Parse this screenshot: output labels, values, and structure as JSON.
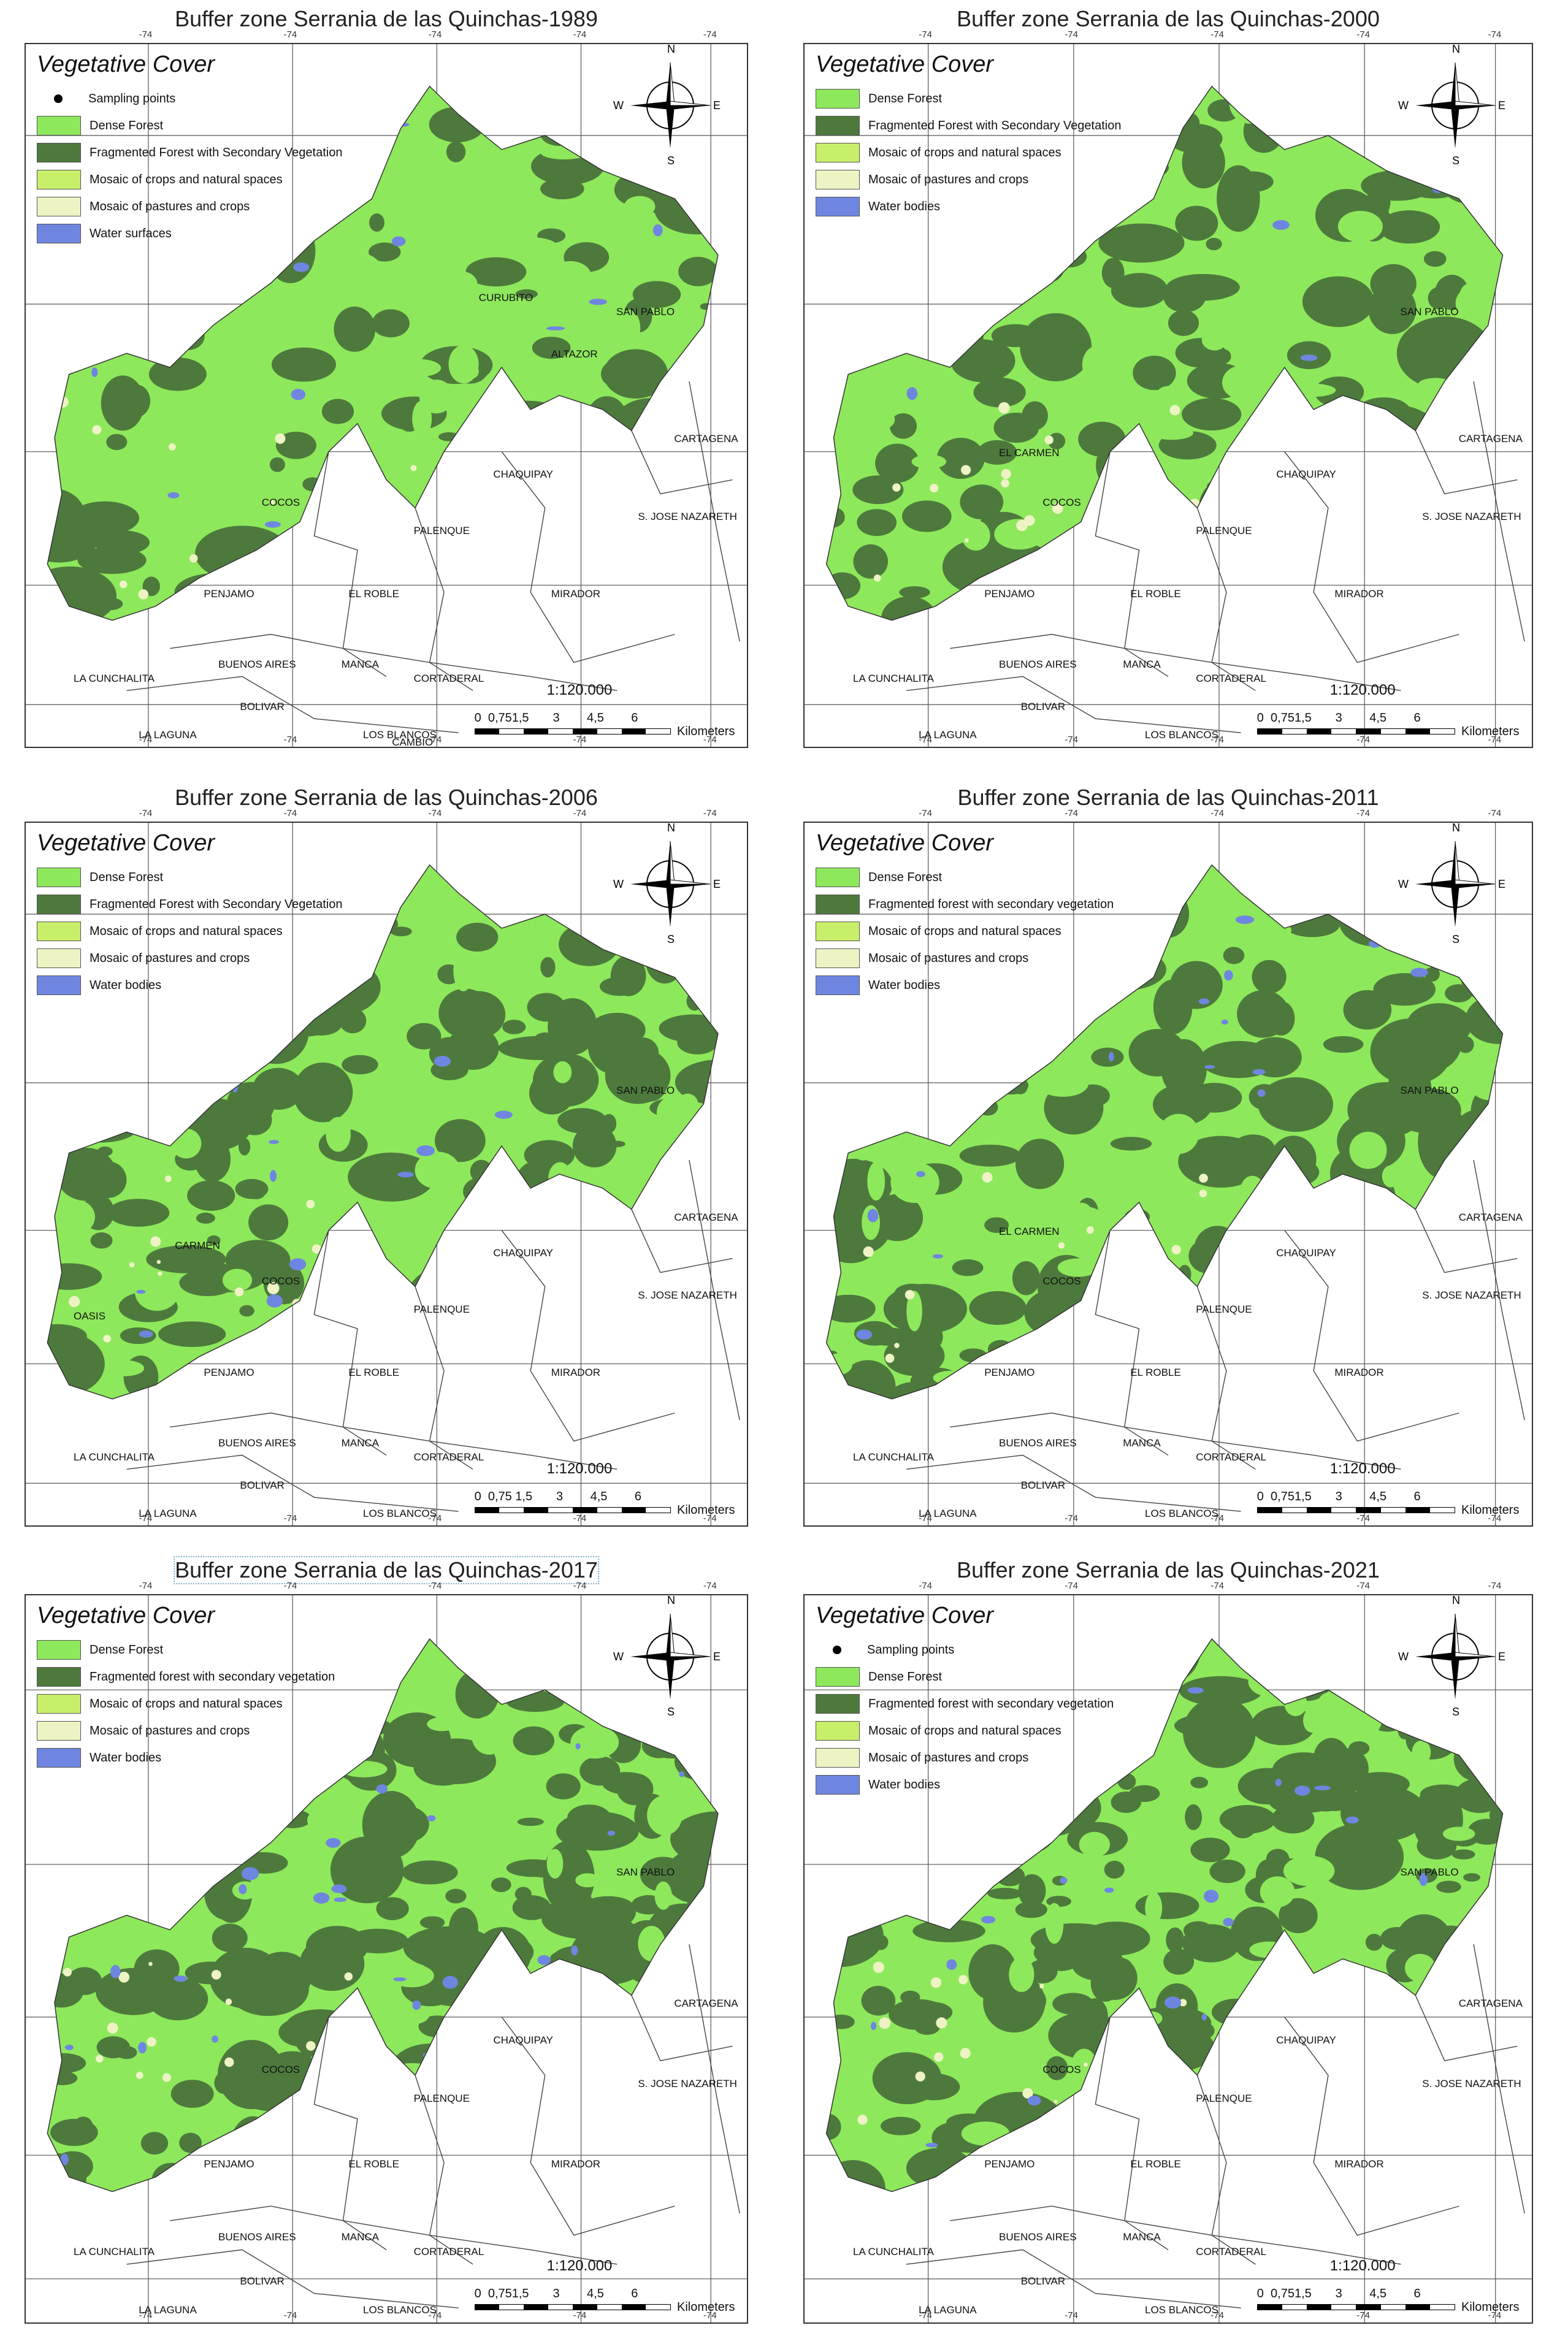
{
  "maps": [
    {
      "title": "Buffer zone Serrania de las Quinchas-1989",
      "legend_title": "Vegetative Cover",
      "legend": [
        {
          "label": "Sampling points",
          "kind": "point",
          "color": "#000000"
        },
        {
          "label": "Dense Forest",
          "kind": "fill",
          "color": "#8ee85c"
        },
        {
          "label": "Fragmented Forest with Secondary Vegetation",
          "kind": "fill",
          "color": "#4d7a3c"
        },
        {
          "label": "Mosaic of crops and natural spaces",
          "kind": "fill",
          "color": "#c8ef6a"
        },
        {
          "label": "Mosaic of pastures and crops",
          "kind": "fill",
          "color": "#eef3c4"
        },
        {
          "label": "Water surfaces",
          "kind": "fill",
          "color": "#6f86e0"
        }
      ],
      "scale_ratio": "1:120.000",
      "scale_ticks": "0  0,751,5       3        4,5        6",
      "scale_unit": "Kilometers",
      "places": [
        "PENJAMO",
        "COCOS",
        "EL ROBLE",
        "CHAQUIPAY",
        "MIRADOR",
        "PALENQUE",
        "S. JOSE NAZARETH",
        "CARTAGENA",
        "BUENOS AIRES",
        "MANCA",
        "CORTADERAL",
        "LOS BLANCOS",
        "BOLIVAR",
        "LA CUNCHALITA",
        "LA LAGUNA",
        "CURUBITO",
        "SAN PABLO",
        "ALTAZOR",
        "CAMBIO"
      ]
    },
    {
      "title": "Buffer zone Serrania de las Quinchas-2000",
      "legend_title": "Vegetative Cover",
      "legend": [
        {
          "label": "Dense Forest",
          "kind": "fill",
          "color": "#8ee85c"
        },
        {
          "label": "Fragmented Forest with Secondary Vegetation",
          "kind": "fill",
          "color": "#4d7a3c"
        },
        {
          "label": "Mosaic of crops and natural spaces",
          "kind": "fill",
          "color": "#c8ef6a"
        },
        {
          "label": "Mosaic of pastures and crops",
          "kind": "fill",
          "color": "#eef3c4"
        },
        {
          "label": "Water bodies",
          "kind": "fill",
          "color": "#6f86e0"
        }
      ],
      "scale_ratio": "1:120.000",
      "scale_ticks": "0  0,751,5       3        4,5        6",
      "scale_unit": "Kilometers",
      "places": [
        "PENJAMO",
        "COCOS",
        "EL ROBLE",
        "CHAQUIPAY",
        "MIRADOR",
        "PALENQUE",
        "S. JOSE NAZARETH",
        "CARTAGENA",
        "BUENOS AIRES",
        "MANCA",
        "CORTADERAL",
        "LOS BLANCOS",
        "BOLIVAR",
        "LA CUNCHALITA",
        "LA LAGUNA",
        "EL CARMEN",
        "SAN PABLO"
      ]
    },
    {
      "title": "Buffer zone Serrania de las Quinchas-2006",
      "legend_title": "Vegetative Cover",
      "legend": [
        {
          "label": "Dense Forest",
          "kind": "fill",
          "color": "#8ee85c"
        },
        {
          "label": "Fragmented Forest with Secondary Vegetation",
          "kind": "fill",
          "color": "#4d7a3c"
        },
        {
          "label": "Mosaic of crops and natural spaces",
          "kind": "fill",
          "color": "#c8ef6a"
        },
        {
          "label": "Mosaic of pastures and crops",
          "kind": "fill",
          "color": "#eef3c4"
        },
        {
          "label": "Water bodies",
          "kind": "fill",
          "color": "#6f86e0"
        }
      ],
      "scale_ratio": "1:120.000",
      "scale_ticks": "0  0,75 1,5       3        4,5        6",
      "scale_unit": "Kilometers",
      "places": [
        "PENJAMO",
        "COCOS",
        "EL ROBLE",
        "CHAQUIPAY",
        "MIRADOR",
        "PALENQUE",
        "S. JOSE NAZARETH",
        "CARTAGENA",
        "BUENOS AIRES",
        "MANCA",
        "CORTADERAL",
        "LOS BLANCOS",
        "BOLIVAR",
        "LA CUNCHALITA",
        "LA LAGUNA",
        "SAN PABLO",
        "OASIS",
        "CARMEN"
      ]
    },
    {
      "title": "Buffer zone Serrania de las Quinchas-2011",
      "legend_title": "Vegetative Cover",
      "legend": [
        {
          "label": "Dense Forest",
          "kind": "fill",
          "color": "#8ee85c"
        },
        {
          "label": "Fragmented forest with secondary vegetation",
          "kind": "fill",
          "color": "#4d7a3c"
        },
        {
          "label": "Mosaic of crops and natural spaces",
          "kind": "fill",
          "color": "#c8ef6a"
        },
        {
          "label": "Mosaic of pastures and crops",
          "kind": "fill",
          "color": "#eef3c4"
        },
        {
          "label": "Water bodies",
          "kind": "fill",
          "color": "#6f86e0"
        }
      ],
      "scale_ratio": "1:120.000",
      "scale_ticks": "0  0,751,5       3        4,5        6",
      "scale_unit": "Kilometers",
      "places": [
        "PENJAMO",
        "COCOS",
        "EL ROBLE",
        "CHAQUIPAY",
        "MIRADOR",
        "PALENQUE",
        "S. JOSE NAZARETH",
        "CARTAGENA",
        "BUENOS AIRES",
        "MANCA",
        "CORTADERAL",
        "LOS BLANCOS",
        "BOLIVAR",
        "LA CUNCHALITA",
        "LA LAGUNA",
        "EL CARMEN",
        "SAN PABLO"
      ]
    },
    {
      "title": "Buffer zone Serrania de las Quinchas-2017",
      "legend_title": "Vegetative Cover",
      "legend": [
        {
          "label": "Dense Forest",
          "kind": "fill",
          "color": "#8ee85c"
        },
        {
          "label": "Fragmented forest with secondary vegetation",
          "kind": "fill",
          "color": "#4d7a3c"
        },
        {
          "label": "Mosaic of crops and natural spaces",
          "kind": "fill",
          "color": "#c8ef6a"
        },
        {
          "label": "Mosaic of pastures and crops",
          "kind": "fill",
          "color": "#eef3c4"
        },
        {
          "label": "Water bodies",
          "kind": "fill",
          "color": "#6f86e0"
        }
      ],
      "scale_ratio": "1:120.000",
      "scale_ticks": "0  0,751,5       3        4,5        6",
      "scale_unit": "Kilometers",
      "places": [
        "PENJAMO",
        "COCOS",
        "EL ROBLE",
        "CHAQUIPAY",
        "MIRADOR",
        "PALENQUE",
        "S. JOSE NAZARETH",
        "CARTAGENA",
        "BUENOS AIRES",
        "MANCA",
        "CORTADERAL",
        "LOS BLANCOS",
        "BOLIVAR",
        "LA CUNCHALITA",
        "LA LAGUNA",
        "SAN PABLO"
      ]
    },
    {
      "title": "Buffer zone Serrania de las Quinchas-2021",
      "legend_title": "Vegetative Cover",
      "legend": [
        {
          "label": "Sampling points",
          "kind": "point",
          "color": "#000000"
        },
        {
          "label": "Dense Forest",
          "kind": "fill",
          "color": "#8ee85c"
        },
        {
          "label": "Fragmented forest with secondary vegetation",
          "kind": "fill",
          "color": "#4d7a3c"
        },
        {
          "label": "Mosaic of crops and natural spaces",
          "kind": "fill",
          "color": "#c8ef6a"
        },
        {
          "label": "Mosaic of pastures and crops",
          "kind": "fill",
          "color": "#eef3c4"
        },
        {
          "label": "Water bodies",
          "kind": "fill",
          "color": "#6f86e0"
        }
      ],
      "scale_ratio": "1:120.000",
      "scale_ticks": "0  0,751,5       3        4,5        6",
      "scale_unit": "Kilometers",
      "places": [
        "PENJAMO",
        "COCOS",
        "EL ROBLE",
        "CHAQUIPAY",
        "MIRADOR",
        "PALENQUE",
        "S. JOSE NAZARETH",
        "CARTAGENA",
        "BUENOS AIRES",
        "MANCA",
        "CORTADERAL",
        "LOS BLANCOS",
        "BOLIVAR",
        "LA CUNCHALITA",
        "LA LAGUNA",
        "SAN PABLO"
      ]
    }
  ],
  "compass": {
    "n": "N",
    "s": "S",
    "e": "E",
    "w": "W"
  },
  "coord_label": "-74"
}
